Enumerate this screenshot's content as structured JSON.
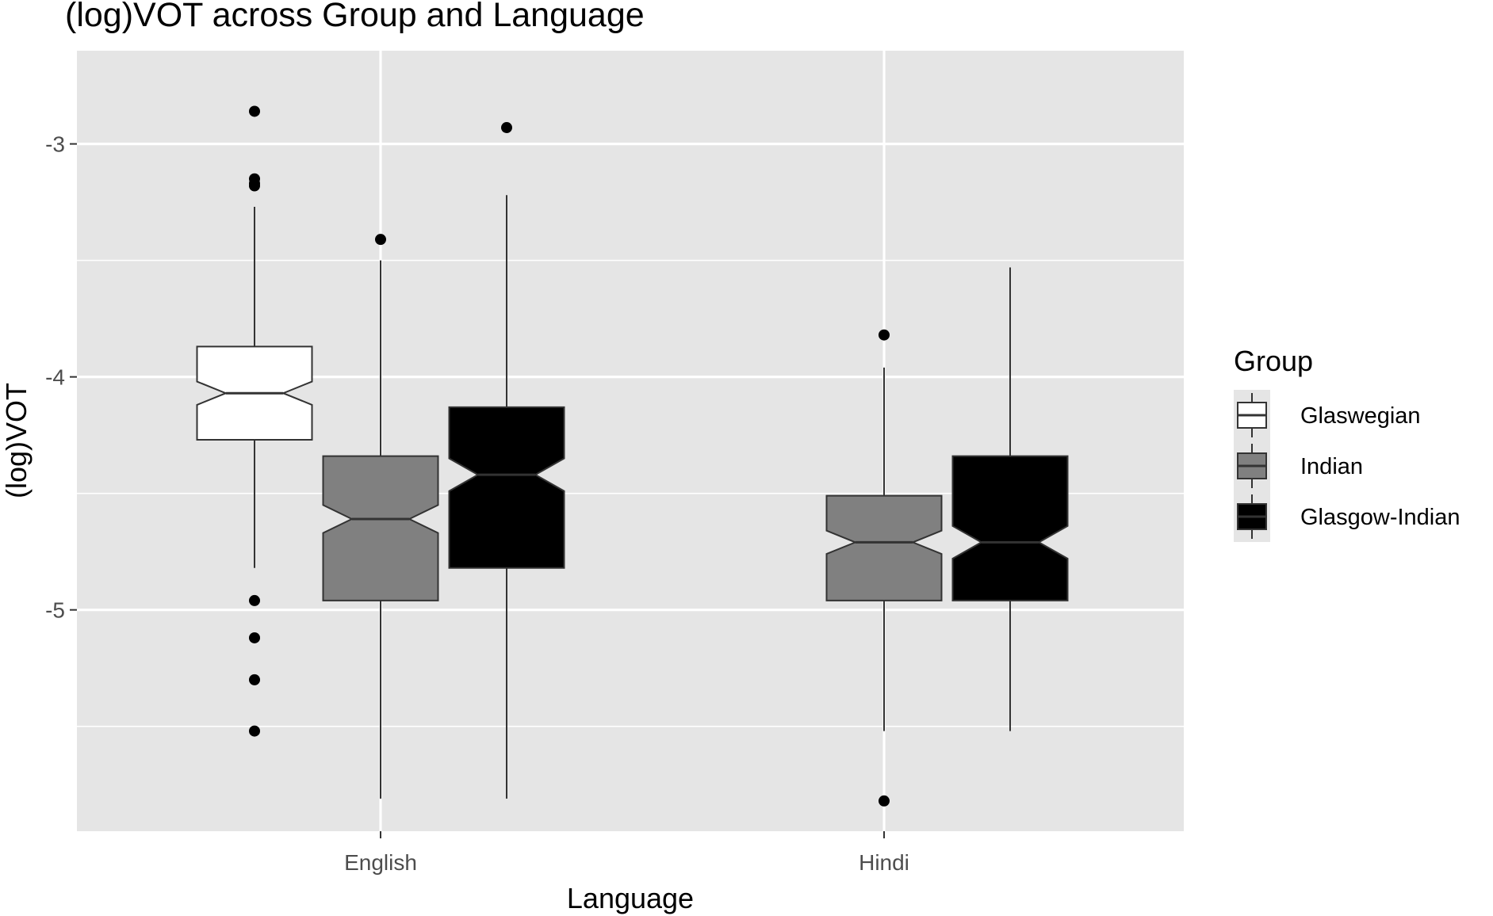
{
  "chart_data": {
    "type": "boxplot",
    "title": "(log)VOT across Group and Language",
    "xlabel": "Language",
    "ylabel": "(log)VOT",
    "categories": [
      "English",
      "Hindi"
    ],
    "ylim": [
      -5.95,
      -2.7
    ],
    "y_ticks": [
      -5,
      -4,
      -3
    ],
    "y_tick_labels": [
      "-5",
      "-4",
      "-3"
    ],
    "grid": true,
    "notched": true,
    "legend": {
      "title": "Group",
      "position": "right",
      "entries": [
        {
          "name": "Glaswegian",
          "color": "#ffffff"
        },
        {
          "name": "Indian",
          "color": "#808080"
        },
        {
          "name": "Glasgow-Indian",
          "color": "#000000"
        }
      ]
    },
    "series": [
      {
        "name": "Glaswegian",
        "color": "#ffffff",
        "boxes": [
          {
            "category": "English",
            "whisker_low": -4.82,
            "q1": -4.27,
            "median": -4.07,
            "q3": -3.87,
            "whisker_high": -3.27,
            "notch": 0.05,
            "outliers": [
              -2.86,
              -3.15,
              -3.17,
              -3.18,
              -4.96,
              -5.12,
              -5.3,
              -5.52
            ]
          },
          null
        ]
      },
      {
        "name": "Indian",
        "color": "#808080",
        "boxes": [
          {
            "category": "English",
            "whisker_low": -5.81,
            "q1": -4.96,
            "median": -4.61,
            "q3": -4.34,
            "whisker_high": -3.5,
            "notch": 0.06,
            "outliers": [
              -3.41
            ]
          },
          {
            "category": "Hindi",
            "whisker_low": -5.52,
            "q1": -4.96,
            "median": -4.71,
            "q3": -4.51,
            "whisker_high": -3.96,
            "notch": 0.05,
            "outliers": [
              -3.82,
              -5.82
            ]
          }
        ]
      },
      {
        "name": "Glasgow-Indian",
        "color": "#000000",
        "boxes": [
          {
            "category": "English",
            "whisker_low": -5.81,
            "q1": -4.82,
            "median": -4.42,
            "q3": -4.13,
            "whisker_high": -3.22,
            "notch": 0.07,
            "outliers": [
              -2.93
            ]
          },
          {
            "category": "Hindi",
            "whisker_low": -5.52,
            "q1": -4.96,
            "median": -4.71,
            "q3": -4.34,
            "whisker_high": -3.53,
            "notch": 0.07,
            "outliers": []
          }
        ]
      }
    ]
  }
}
